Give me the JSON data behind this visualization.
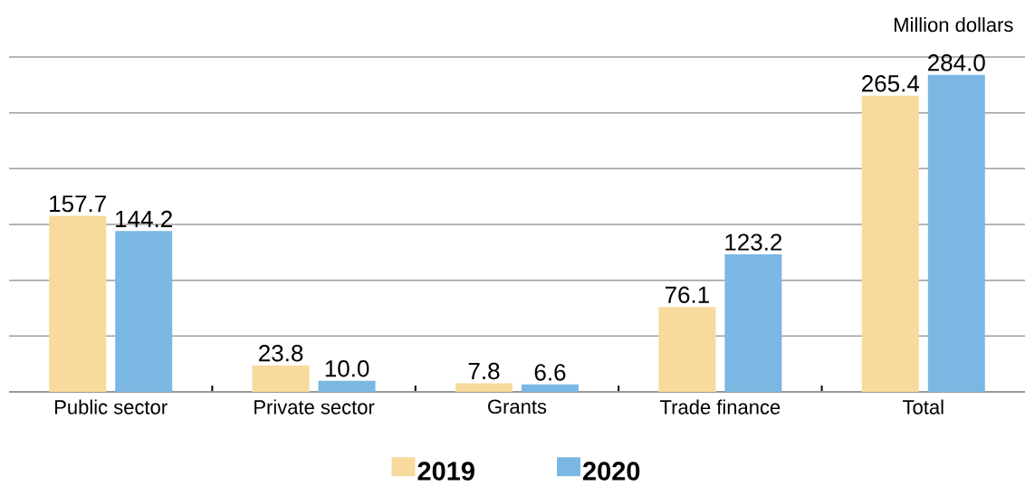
{
  "chart_data": {
    "type": "bar",
    "ylabel": "Million dollars",
    "categories": [
      "Public sector",
      "Private sector",
      "Grants",
      "Trade finance",
      "Total"
    ],
    "series": [
      {
        "name": "2019",
        "color": "#f8da9c",
        "values": [
          157.7,
          23.8,
          7.8,
          76.1,
          265.4
        ],
        "value_labels": [
          "157.7",
          "23.8",
          "7.8",
          "76.1",
          "265.4"
        ]
      },
      {
        "name": "2020",
        "color": "#7ab8e3",
        "values": [
          144.2,
          10.0,
          6.6,
          123.2,
          284.0
        ],
        "value_labels": [
          "144.2",
          "10.0",
          "6.6",
          "123.2",
          "284.0"
        ]
      }
    ],
    "ylim": [
      0,
      300
    ],
    "yticks": [
      {
        "value": 0,
        "label": null
      },
      {
        "value": 50,
        "label": null
      },
      {
        "value": 100,
        "label": null
      },
      {
        "value": 150,
        "label": null
      },
      {
        "value": 200,
        "label": null
      },
      {
        "value": 250,
        "label": null
      },
      {
        "value": 300,
        "label": null
      }
    ],
    "grid": "y",
    "legend": "bottom",
    "tick_labels": "x"
  }
}
